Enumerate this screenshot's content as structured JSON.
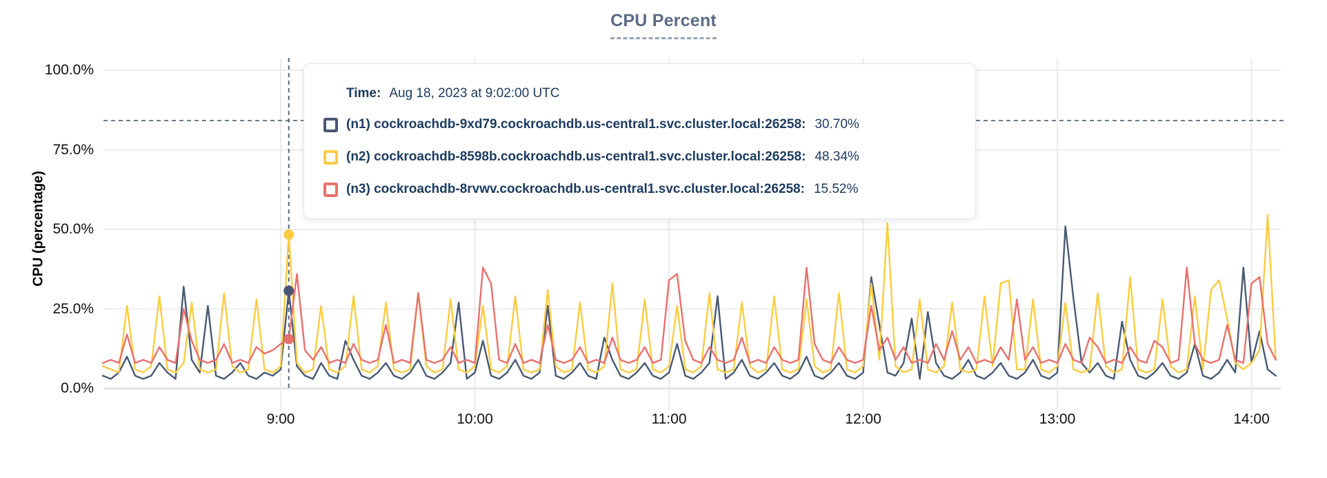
{
  "page_title": "CPU Percent",
  "colors": {
    "n1_line": "#475872",
    "n2_line": "#fbcc41",
    "n3_line": "#e8706d",
    "grid": "#ebebeb",
    "axis_text": "#111111",
    "title_text": "#5a6a85",
    "tooltip_text": "#1c3a5e",
    "cursor_dash": "#54687d"
  },
  "tooltip": {
    "time_label": "Time:",
    "time_value": "Aug 18, 2023 at 9:02:00 UTC",
    "rows": [
      {
        "label": "(n1) cockroachdb-9xd79.cockroachdb.us-central1.svc.cluster.local:26258:",
        "value": "30.70%",
        "color": "#475872"
      },
      {
        "label": "(n2) cockroachdb-8598b.cockroachdb.us-central1.svc.cluster.local:26258:",
        "value": "48.34%",
        "color": "#fbcc41"
      },
      {
        "label": "(n3) cockroachdb-8rvwv.cockroachdb.us-central1.svc.cluster.local:26258:",
        "value": "15.52%",
        "color": "#e8706d"
      }
    ]
  },
  "chart_data": {
    "type": "line",
    "title": "CPU Percent",
    "xlabel": "",
    "ylabel": "CPU (percentage)",
    "ylim": [
      0,
      100
    ],
    "grid": true,
    "legend_position": "tooltip",
    "y_ticks": [
      {
        "value": 0,
        "label": "0.0%"
      },
      {
        "value": 25,
        "label": "25.0%"
      },
      {
        "value": 50,
        "label": "50.0%"
      },
      {
        "value": 75,
        "label": "75.0%"
      },
      {
        "value": 100,
        "label": "100.0%"
      }
    ],
    "x_ticks": [
      {
        "minutes": 60,
        "label": "9:00"
      },
      {
        "minutes": 120,
        "label": "10:00"
      },
      {
        "minutes": 180,
        "label": "11:00"
      },
      {
        "minutes": 240,
        "label": "12:00"
      },
      {
        "minutes": 300,
        "label": "13:00"
      },
      {
        "minutes": 360,
        "label": "14:00"
      }
    ],
    "x_start_minutes": 5,
    "x_step_minutes": 2.5,
    "cursor": {
      "x_minutes": 62.5,
      "y_percent": 84.2,
      "time_text": "Aug 18, 2023 at 9:02:00 UTC"
    },
    "series": [
      {
        "name": "(n1) cockroachdb-9xd79.cockroachdb.us-central1.svc.cluster.local:26258",
        "color": "#475872",
        "cursor_value": 30.7,
        "values": [
          4,
          3,
          5,
          10,
          4,
          3,
          4,
          8,
          5,
          3,
          32,
          9,
          5,
          26,
          4,
          3,
          5,
          8,
          4,
          3,
          5,
          4,
          6,
          30.7,
          7,
          4,
          3,
          8,
          4,
          3,
          15,
          9,
          4,
          3,
          5,
          8,
          4,
          3,
          5,
          9,
          4,
          3,
          5,
          8,
          27,
          3,
          5,
          15,
          4,
          3,
          5,
          9,
          4,
          3,
          5,
          26,
          4,
          3,
          5,
          8,
          4,
          3,
          16,
          9,
          4,
          3,
          5,
          8,
          4,
          3,
          5,
          14,
          4,
          3,
          5,
          8,
          29,
          3,
          5,
          9,
          4,
          3,
          5,
          8,
          4,
          3,
          5,
          10,
          4,
          3,
          5,
          8,
          4,
          3,
          5,
          35,
          20,
          5,
          4,
          8,
          22,
          3,
          24,
          8,
          4,
          3,
          5,
          9,
          4,
          3,
          5,
          8,
          4,
          3,
          5,
          9,
          4,
          3,
          5,
          51,
          28,
          8,
          5,
          8,
          4,
          3,
          21,
          9,
          4,
          3,
          5,
          8,
          4,
          3,
          5,
          14,
          4,
          3,
          5,
          9,
          5,
          38,
          8,
          18,
          6,
          4
        ]
      },
      {
        "name": "(n2) cockroachdb-8598b.cockroachdb.us-central1.svc.cluster.local:26258",
        "color": "#fbcc41",
        "cursor_value": 48.34,
        "values": [
          7,
          6,
          5,
          26,
          6,
          5,
          7,
          29,
          6,
          5,
          8,
          27,
          6,
          5,
          6,
          30,
          7,
          5,
          6,
          28,
          6,
          5,
          7,
          48.34,
          8,
          5,
          6,
          26,
          6,
          5,
          7,
          29,
          6,
          5,
          7,
          27,
          6,
          5,
          6,
          30,
          7,
          5,
          6,
          28,
          6,
          5,
          7,
          26,
          6,
          5,
          7,
          29,
          6,
          5,
          6,
          31,
          7,
          5,
          6,
          27,
          6,
          5,
          7,
          33,
          6,
          5,
          6,
          28,
          6,
          5,
          7,
          26,
          6,
          5,
          7,
          30,
          6,
          5,
          6,
          27,
          7,
          5,
          6,
          29,
          6,
          5,
          6,
          28,
          7,
          5,
          6,
          30,
          6,
          5,
          7,
          33,
          9,
          52,
          7,
          5,
          6,
          28,
          6,
          5,
          7,
          27,
          6,
          5,
          6,
          29,
          7,
          33,
          34,
          6,
          6,
          28,
          6,
          5,
          7,
          27,
          6,
          5,
          6,
          30,
          7,
          5,
          6,
          35,
          6,
          5,
          6,
          28,
          7,
          5,
          6,
          29,
          6,
          31,
          34,
          22,
          8,
          6,
          8,
          12,
          54.5,
          9
        ]
      },
      {
        "name": "(n3) cockroachdb-8rvwv.cockroachdb.us-central1.svc.cluster.local:26258",
        "color": "#e8706d",
        "cursor_value": 15.52,
        "values": [
          8,
          9,
          8,
          17,
          8,
          9,
          8,
          13,
          9,
          8,
          25,
          15,
          9,
          8,
          9,
          14,
          8,
          9,
          8,
          13,
          11,
          12,
          14,
          15.52,
          36,
          12,
          9,
          13,
          8,
          9,
          8,
          14,
          9,
          8,
          9,
          20,
          8,
          9,
          8,
          30,
          9,
          8,
          9,
          13,
          8,
          9,
          8,
          38,
          33,
          9,
          8,
          14,
          8,
          9,
          8,
          20,
          9,
          8,
          9,
          13,
          8,
          9,
          8,
          16,
          9,
          8,
          9,
          13,
          8,
          9,
          34,
          36,
          15,
          9,
          8,
          13,
          9,
          8,
          9,
          16,
          8,
          9,
          8,
          13,
          9,
          8,
          9,
          38,
          14,
          9,
          8,
          13,
          9,
          8,
          9,
          26,
          12,
          16,
          9,
          13,
          8,
          9,
          8,
          14,
          9,
          18,
          9,
          13,
          8,
          9,
          8,
          13,
          9,
          28,
          9,
          13,
          8,
          9,
          8,
          14,
          9,
          8,
          16,
          13,
          8,
          9,
          8,
          13,
          9,
          8,
          15,
          13,
          8,
          9,
          38,
          14,
          9,
          8,
          9,
          20,
          9,
          8,
          33,
          35,
          14,
          9
        ]
      }
    ]
  }
}
